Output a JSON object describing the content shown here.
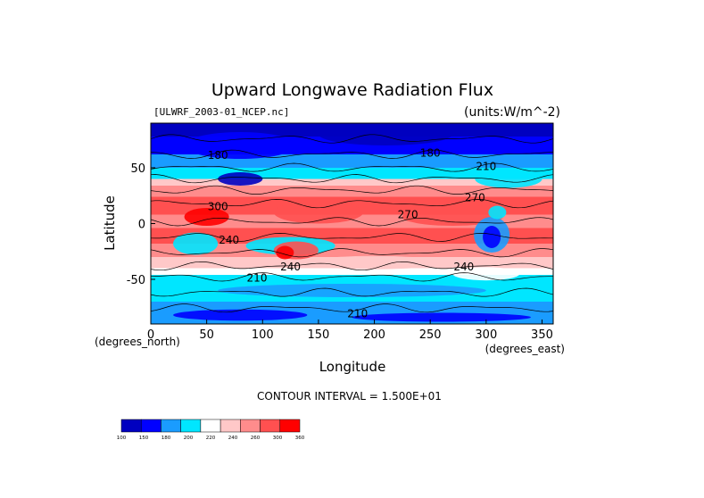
{
  "chart_data": {
    "type": "heatmap",
    "title": "Upward Longwave Radiation Flux",
    "file_label": "[ULWRF_2003-01_NCEP.nc]",
    "units_label": "(units:W/m^-2)",
    "xlabel": "Longitude",
    "ylabel": "Latitude",
    "x_unit_label": "(degrees_east)",
    "y_unit_label": "(degrees_north)",
    "contour_interval_label": "CONTOUR INTERVAL = 1.500E+01",
    "xlim": [
      0,
      360
    ],
    "ylim": [
      -90,
      90
    ],
    "x_ticks": [
      0,
      50,
      100,
      150,
      200,
      250,
      300,
      350
    ],
    "y_ticks": [
      50,
      0,
      -50
    ],
    "colorbar": {
      "levels": [
        100,
        150,
        180,
        200,
        220,
        240,
        260,
        300,
        360
      ],
      "colors": [
        "#0000c0",
        "#0000ff",
        "#1a9cff",
        "#00e6ff",
        "#ffffff",
        "#ffc8c8",
        "#ff8c8c",
        "#ff5050",
        "#ff0000"
      ]
    },
    "contour_labels": [
      {
        "text": "180",
        "lon": 60,
        "lat": 58
      },
      {
        "text": "180",
        "lon": 250,
        "lat": 60
      },
      {
        "text": "210",
        "lon": 300,
        "lat": 48
      },
      {
        "text": "270",
        "lon": 290,
        "lat": 20
      },
      {
        "text": "300",
        "lon": 60,
        "lat": 12
      },
      {
        "text": "270",
        "lon": 230,
        "lat": 5
      },
      {
        "text": "240",
        "lon": 70,
        "lat": -18
      },
      {
        "text": "240",
        "lon": 125,
        "lat": -42
      },
      {
        "text": "240",
        "lon": 280,
        "lat": -42
      },
      {
        "text": "210",
        "lon": 95,
        "lat": -52
      },
      {
        "text": "210",
        "lon": 185,
        "lat": -84
      }
    ]
  }
}
